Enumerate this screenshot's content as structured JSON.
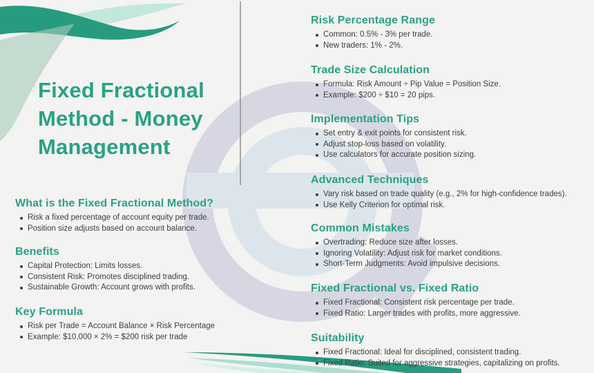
{
  "title_lines": [
    "Fixed Fractional",
    "Method - Money",
    "Management"
  ],
  "left_sections": [
    {
      "heading": "What is the Fixed Fractional Method?",
      "bullets": [
        "Risk a fixed percentage of account equity per trade.",
        "Position size adjusts based on account balance."
      ]
    },
    {
      "heading": "Benefits",
      "bullets": [
        "Capital Protection: Limits losses.",
        "Consistent Risk: Promotes disciplined trading.",
        "Sustainable Growth: Account grows with profits."
      ]
    },
    {
      "heading": "Key Formula",
      "bullets": [
        "Risk per Trade = Account Balance × Risk Percentage",
        "Example: $10,000 × 2% = $200 risk per trade"
      ]
    }
  ],
  "right_sections": [
    {
      "heading": "Risk Percentage Range",
      "bullets": [
        "Common: 0.5% - 3% per trade.",
        "New traders: 1% - 2%."
      ]
    },
    {
      "heading": "Trade Size Calculation",
      "bullets": [
        "Formula: Risk Amount ÷ Pip Value = Position Size.",
        "Example: $200 ÷ $10 = 20 pips."
      ]
    },
    {
      "heading": "Implementation Tips",
      "bullets": [
        "Set entry & exit points for consistent risk.",
        "Adjust stop-loss based on volatility.",
        "Use calculators for accurate position sizing."
      ]
    },
    {
      "heading": "Advanced Techniques",
      "bullets": [
        "Vary risk based on trade quality (e.g., 2% for high-confidence trades).",
        "Use Kelly Criterion for optimal risk."
      ]
    },
    {
      "heading": "Common Mistakes",
      "bullets": [
        "Overtrading: Reduce size after losses.",
        "Ignoring Volatility: Adjust risk for market conditions.",
        "Short-Term Judgments: Avoid impulsive decisions."
      ]
    },
    {
      "heading": "Fixed Fractional vs. Fixed Ratio",
      "bullets": [
        "Fixed Fractional: Consistent risk percentage per trade.",
        "Fixed Ratio: Larger trades with profits, more aggressive."
      ]
    },
    {
      "heading": "Suitability",
      "bullets": [
        "Fixed Fractional: Ideal for disciplined, consistent trading.",
        "Fixed Ratio: Suited for aggressive strategies, capitalizing on profits."
      ]
    }
  ],
  "colors": {
    "background": "#f3f3f1",
    "accent": "#2aa185",
    "body_text": "#3e3e3e",
    "wave_dark_teal": "#279b80",
    "wave_mint": "#b9e5d6",
    "wave_pale_mint": "#d5efe6",
    "wave_sage": "#a6c9ba",
    "watermark_lavender": "#d6d7e3",
    "watermark_blue": "#dce5ec",
    "divider": "#8f8f8f"
  }
}
